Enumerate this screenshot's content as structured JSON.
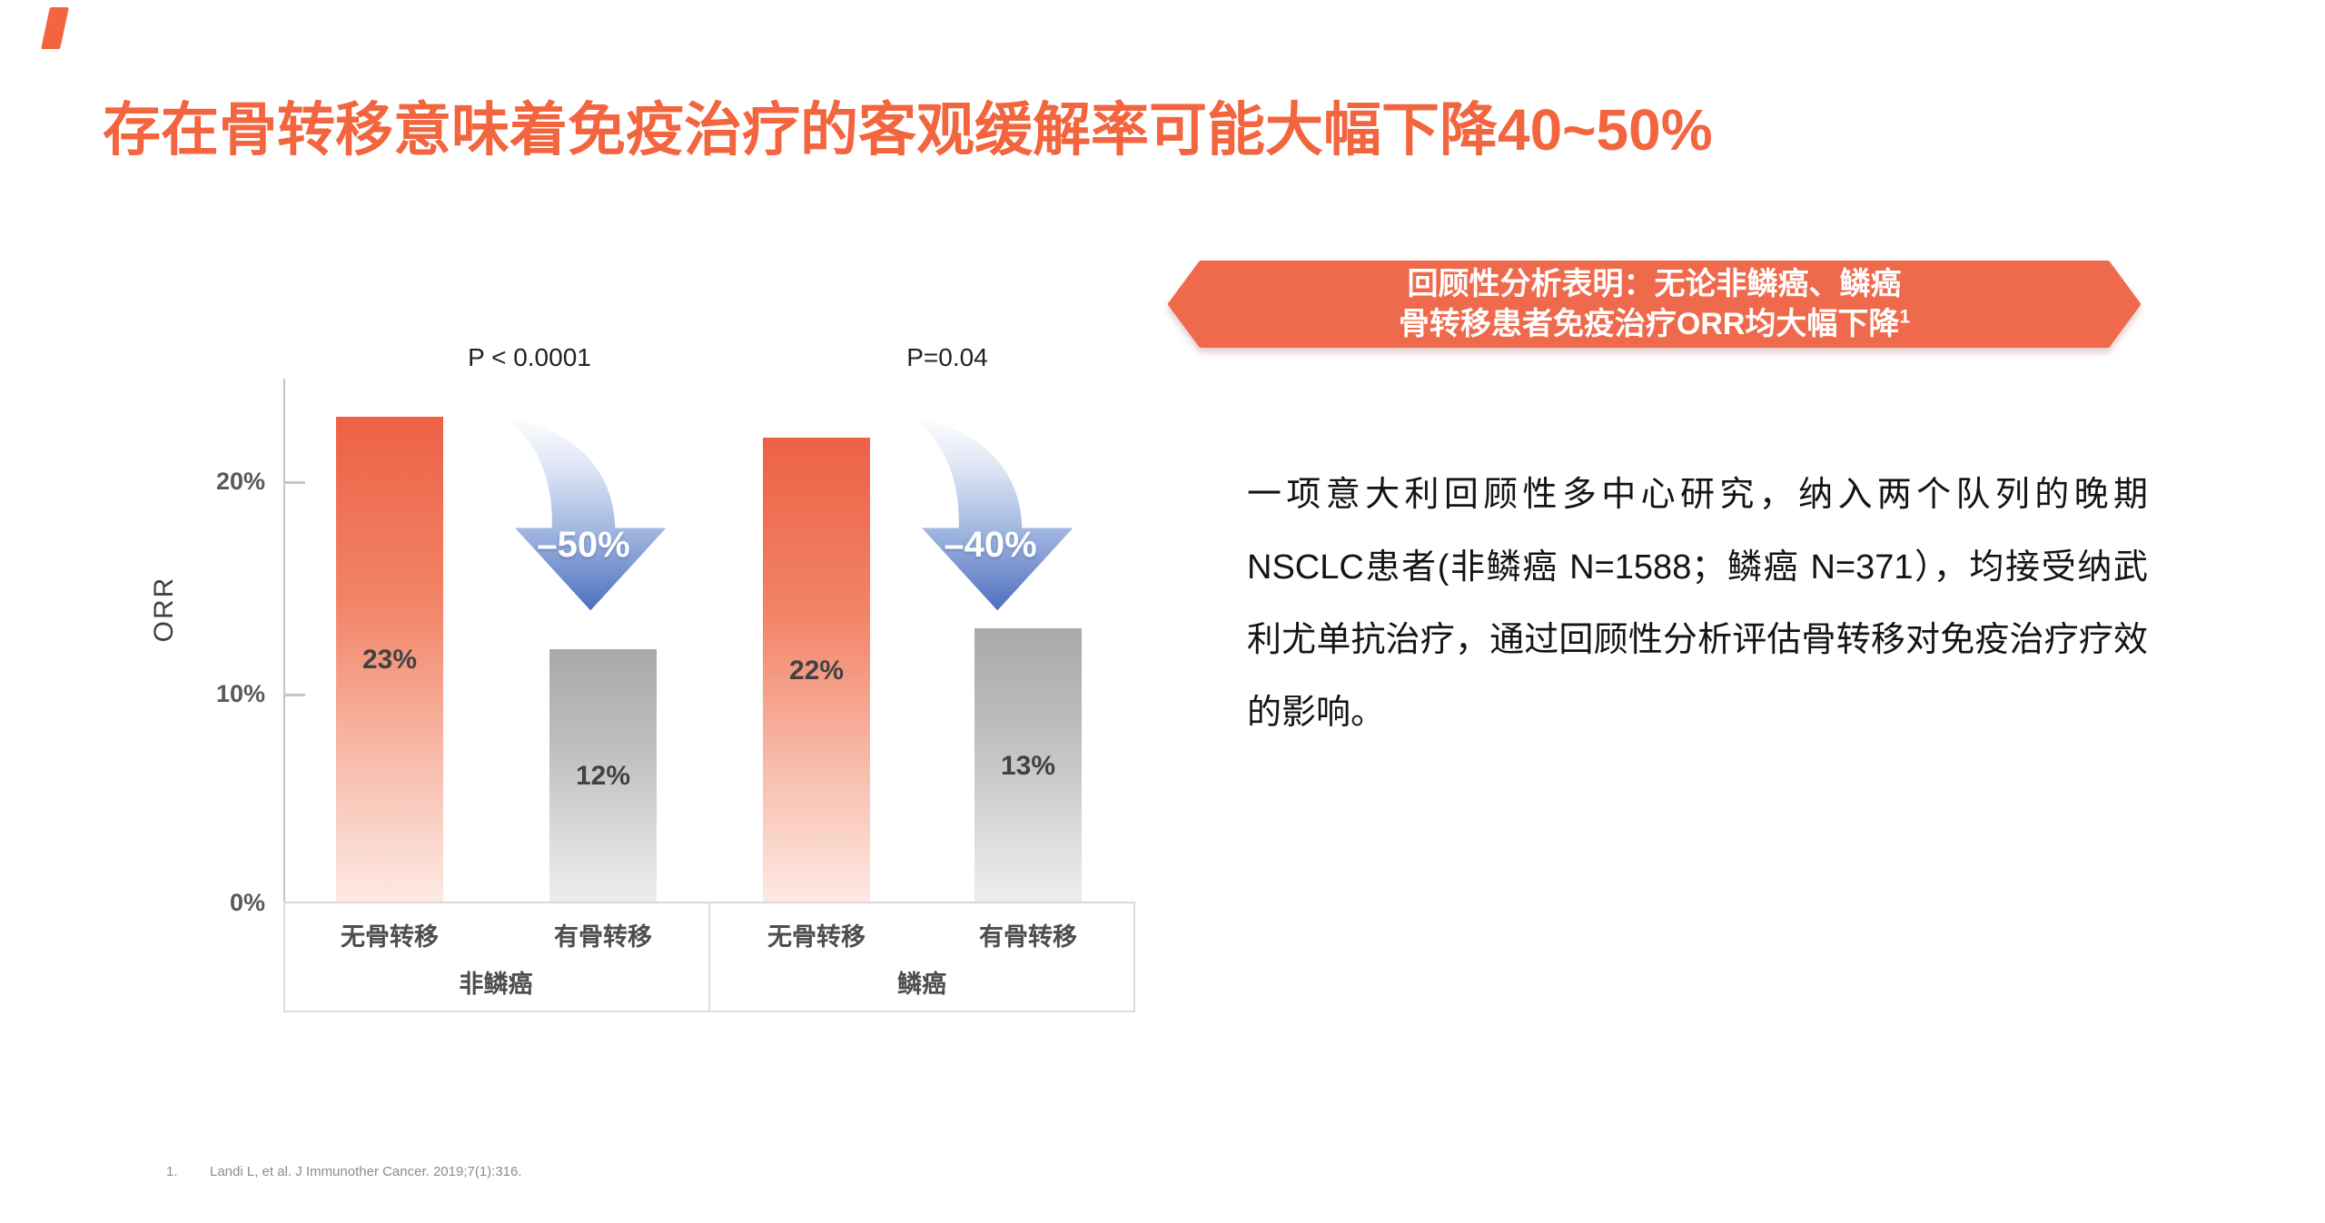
{
  "colors": {
    "title_accent": "#F2653E",
    "banner_accent": "#EF6A4C",
    "arrow_blue_deep": "#4E6FBE",
    "bar_red_top": "#ED6146",
    "bar_gray_top": "#A9A9A9"
  },
  "title": "存在骨转移意味着免疫治疗的客观缓解率可能大幅下降40~50%",
  "banner": {
    "line1": "回顾性分析表明：无论非鳞癌、鳞癌",
    "line2": "骨转移患者免疫治疗ORR均大幅下降",
    "sup": "1"
  },
  "body_paragraph": "一项意大利回顾性多中心研究，纳入两个队列的晚期NSCLC患者(非鳞癌 N=1588；鳞癌 N=371），均接受纳武利尤单抗治疗，通过回顾性分析评估骨转移对免疫治疗疗效的影响。",
  "footnote": {
    "index": "1.",
    "text": "Landi L, et al. J Immunother Cancer. 2019;7(1):316."
  },
  "chart_data": {
    "type": "bar",
    "title": "",
    "xlabel": "",
    "ylabel": "ORR",
    "ylim": [
      0,
      24.8
    ],
    "unit": "%",
    "grid": false,
    "yticks": [
      {
        "label": "20%",
        "value": 20
      },
      {
        "label": "10%",
        "value": 10
      },
      {
        "label": "0%",
        "value": 0
      }
    ],
    "groups": [
      {
        "group": "非鳞癌",
        "p_value": "P < 0.0001",
        "drop_label": "–50%",
        "bars": [
          {
            "category": "无骨转移",
            "value": 23,
            "label": "23%",
            "style": "red"
          },
          {
            "category": "有骨转移",
            "value": 12,
            "label": "12%",
            "style": "gray"
          }
        ]
      },
      {
        "group": "鳞癌",
        "p_value": "P=0.04",
        "drop_label": "–40%",
        "bars": [
          {
            "category": "无骨转移",
            "value": 22,
            "label": "22%",
            "style": "red"
          },
          {
            "category": "有骨转移",
            "value": 13,
            "label": "13%",
            "style": "gray"
          }
        ]
      }
    ]
  }
}
